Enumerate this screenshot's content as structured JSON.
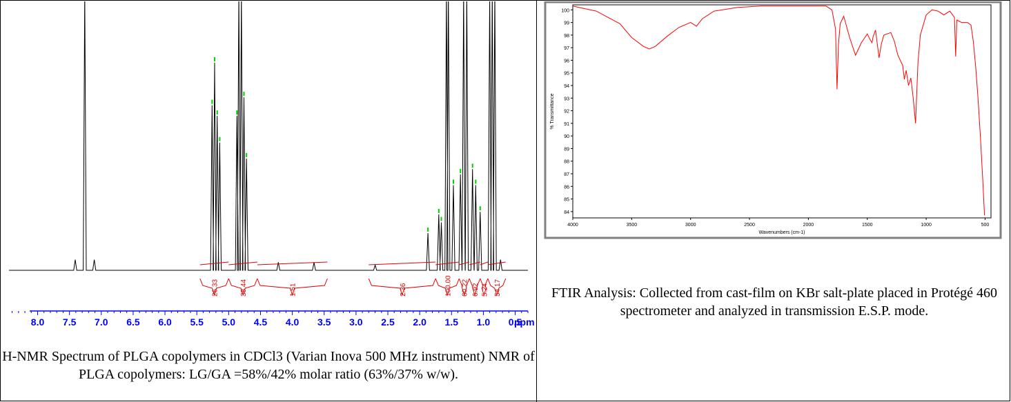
{
  "chart_data": [
    {
      "type": "line",
      "xlabel": "",
      "x_unit_label": "ppm",
      "x_reversed": true,
      "xlim": [
        0.3,
        8.45
      ],
      "x_ticks": [
        "8.0",
        "7.5",
        "7.0",
        "6.5",
        "6.0",
        "5.5",
        "5.0",
        "4.5",
        "4.0",
        "3.5",
        "3.0",
        "2.5",
        "2.0",
        "1.5",
        "1.0",
        "0.5"
      ],
      "peaks": [
        {
          "ppm": 7.26,
          "height": 1.05
        },
        {
          "ppm": 7.41,
          "height": 0.04
        },
        {
          "ppm": 7.11,
          "height": 0.04
        },
        {
          "ppm": 5.26,
          "height": 0.62
        },
        {
          "ppm": 5.22,
          "height": 0.78
        },
        {
          "ppm": 5.18,
          "height": 0.58
        },
        {
          "ppm": 5.14,
          "height": 0.48
        },
        {
          "ppm": 4.87,
          "height": 0.58
        },
        {
          "ppm": 4.84,
          "height": 1.05
        },
        {
          "ppm": 4.8,
          "height": 1.05
        },
        {
          "ppm": 4.76,
          "height": 0.65
        },
        {
          "ppm": 4.72,
          "height": 0.42
        },
        {
          "ppm": 4.22,
          "height": 0.03
        },
        {
          "ppm": 3.66,
          "height": 0.03
        },
        {
          "ppm": 2.7,
          "height": 0.02
        },
        {
          "ppm": 1.87,
          "height": 0.14
        },
        {
          "ppm": 1.7,
          "height": 0.21
        },
        {
          "ppm": 1.66,
          "height": 0.18
        },
        {
          "ppm": 1.58,
          "height": 1.05
        },
        {
          "ppm": 1.55,
          "height": 1.05
        },
        {
          "ppm": 1.47,
          "height": 0.32
        },
        {
          "ppm": 1.36,
          "height": 0.36
        },
        {
          "ppm": 1.31,
          "height": 1.05
        },
        {
          "ppm": 1.26,
          "height": 1.05
        },
        {
          "ppm": 1.17,
          "height": 0.38
        },
        {
          "ppm": 1.12,
          "height": 0.32
        },
        {
          "ppm": 1.05,
          "height": 0.22
        },
        {
          "ppm": 0.9,
          "height": 1.05
        },
        {
          "ppm": 0.86,
          "height": 1.05
        },
        {
          "ppm": 0.82,
          "height": 1.05
        },
        {
          "ppm": 0.73,
          "height": 0.04
        }
      ],
      "integrals": [
        {
          "label": "26.33",
          "from": 5.45,
          "to": 5.0
        },
        {
          "label": "38.44",
          "from": 5.0,
          "to": 4.55
        },
        {
          "label": "1.51",
          "from": 4.55,
          "to": 3.45
        },
        {
          "label": "2.36",
          "from": 2.8,
          "to": 1.75
        },
        {
          "label": "100.00",
          "from": 1.75,
          "to": 1.38
        },
        {
          "label": "60.22",
          "from": 1.38,
          "to": 1.22
        },
        {
          "label": "6.92",
          "from": 1.22,
          "to": 1.05
        },
        {
          "label": "5.24",
          "from": 1.05,
          "to": 0.93
        },
        {
          "label": "54.17",
          "from": 0.93,
          "to": 0.65
        }
      ],
      "colors": {
        "spectrum": "#000000",
        "integral": "#e00000",
        "marker": "#00cc00",
        "axis": "#0000ff"
      }
    },
    {
      "type": "line",
      "xlabel": "Wavenumbers (cm-1)",
      "ylabel": "% Transmittance",
      "xlim": [
        4000,
        450
      ],
      "ylim": [
        83.5,
        100.4
      ],
      "x_ticks": [
        "4000",
        "3500",
        "3000",
        "2500",
        "2000",
        "1500",
        "1000",
        "500"
      ],
      "y_ticks": [
        "100",
        "99",
        "98",
        "97",
        "96",
        "95",
        "94",
        "93",
        "92",
        "91",
        "90",
        "89",
        "88",
        "87",
        "86",
        "85",
        "84"
      ],
      "x": [
        4000,
        3900,
        3800,
        3700,
        3600,
        3500,
        3400,
        3350,
        3300,
        3200,
        3100,
        3000,
        2950,
        2900,
        2800,
        2600,
        2400,
        2200,
        2000,
        1850,
        1800,
        1770,
        1757,
        1745,
        1730,
        1700,
        1650,
        1600,
        1550,
        1500,
        1480,
        1460,
        1450,
        1430,
        1400,
        1380,
        1360,
        1300,
        1270,
        1240,
        1200,
        1185,
        1170,
        1150,
        1130,
        1110,
        1090,
        1080,
        1070,
        1050,
        1000,
        950,
        900,
        850,
        800,
        760,
        750,
        740,
        700,
        650,
        620,
        600,
        580,
        560,
        540,
        520,
        505
      ],
      "y": [
        100.3,
        100.1,
        99.9,
        99.4,
        98.9,
        97.8,
        97.1,
        96.9,
        97.1,
        97.9,
        98.6,
        99.0,
        98.7,
        99.3,
        99.9,
        100.2,
        100.3,
        100.3,
        100.3,
        100.3,
        100.0,
        98.5,
        93.7,
        97.2,
        98.9,
        99.5,
        97.8,
        96.4,
        97.4,
        98.1,
        97.7,
        97.4,
        97.9,
        98.4,
        96.2,
        97.3,
        98.0,
        98.2,
        97.5,
        96.4,
        95.6,
        94.5,
        95.2,
        94.0,
        94.6,
        93.0,
        91.0,
        93.5,
        95.8,
        98.0,
        99.6,
        100.0,
        99.9,
        99.6,
        99.9,
        99.4,
        96.3,
        99.2,
        99.0,
        99.0,
        98.8,
        97.5,
        95.5,
        93.0,
        90.0,
        86.5,
        83.7
      ],
      "colors": {
        "line": "#ff0000",
        "frame": "#808080"
      }
    }
  ],
  "captions": {
    "nmr": "H-NMR Spectrum of PLGA copolymers in CDCl3 (Varian Inova 500 MHz instrument) NMR of PLGA copolymers: LG/GA =58%/42% molar ratio (63%/37% w/w).",
    "ftir": "FTIR Analysis: Collected from cast-film on KBr salt-plate placed in Protégé 460 spectrometer and analyzed in transmission E.S.P. mode."
  }
}
